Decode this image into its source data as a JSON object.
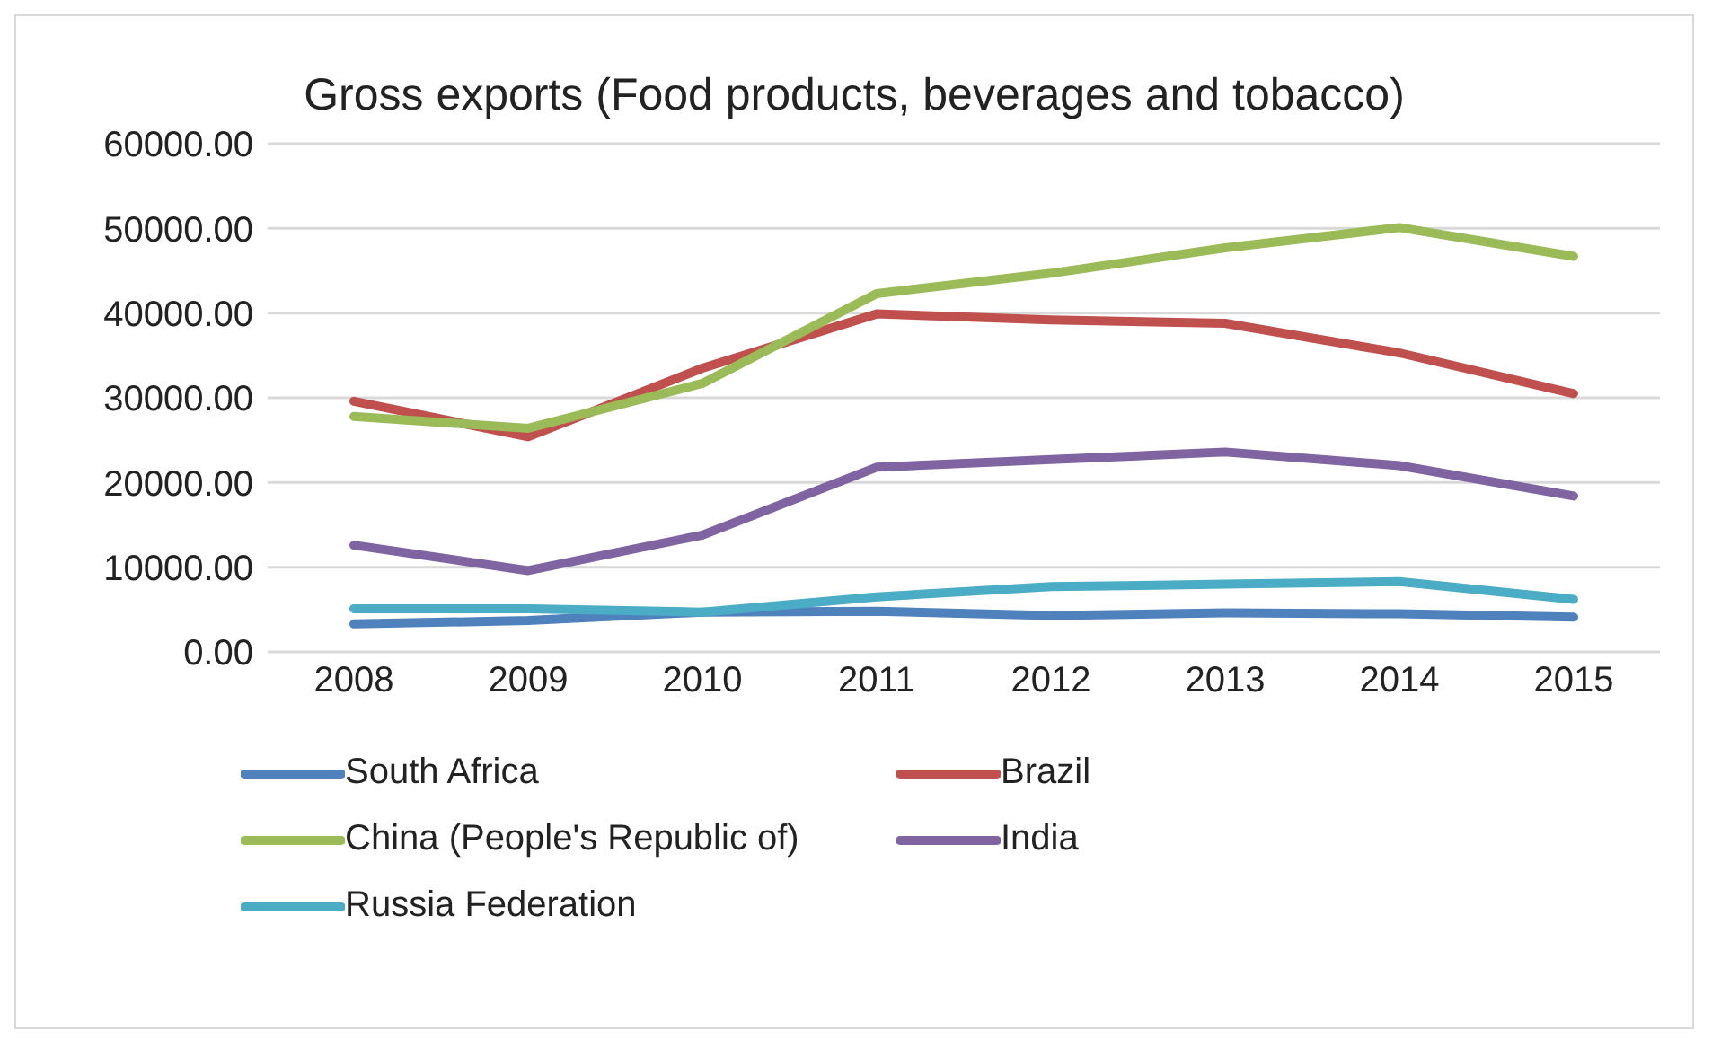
{
  "chart_data": {
    "type": "line",
    "title": "Gross exports (Food products, beverages and tobacco)",
    "categories": [
      "2008",
      "2009",
      "2010",
      "2011",
      "2012",
      "2013",
      "2014",
      "2015"
    ],
    "series": [
      {
        "name": "South Africa",
        "color": "#4f81bd",
        "values": [
          3300,
          3700,
          4700,
          4800,
          4300,
          4600,
          4500,
          4100
        ]
      },
      {
        "name": "Brazil",
        "color": "#c0504d",
        "values": [
          29600,
          25400,
          33500,
          39900,
          39200,
          38800,
          35300,
          30500
        ]
      },
      {
        "name": "China (People's Republic of)",
        "color": "#9bbb59",
        "values": [
          27800,
          26400,
          31700,
          42300,
          44700,
          47700,
          50100,
          46700
        ]
      },
      {
        "name": "India",
        "color": "#8064a2",
        "values": [
          12600,
          9600,
          13800,
          21800,
          22700,
          23600,
          22000,
          18400
        ]
      },
      {
        "name": "Russia Federation",
        "color": "#4bacc6",
        "values": [
          5100,
          5100,
          4700,
          6500,
          7700,
          8000,
          8300,
          6200
        ]
      }
    ],
    "ylim": [
      0,
      60000
    ],
    "yticks": [
      {
        "value": 0,
        "label": "0.00"
      },
      {
        "value": 10000,
        "label": "10000.00"
      },
      {
        "value": 20000,
        "label": "20000.00"
      },
      {
        "value": 30000,
        "label": "30000.00"
      },
      {
        "value": 40000,
        "label": "40000.00"
      },
      {
        "value": 50000,
        "label": "50000.00"
      },
      {
        "value": 60000,
        "label": "60000.00"
      }
    ],
    "grid": "y",
    "legend": "bottom",
    "marker": "none",
    "line_style": "solid"
  }
}
